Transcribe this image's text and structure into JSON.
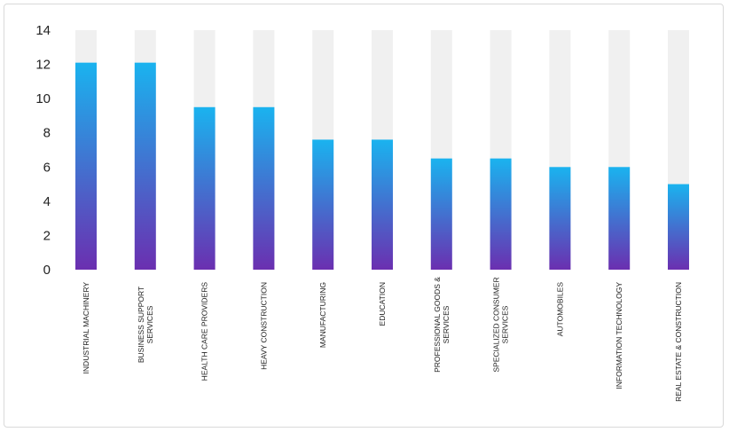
{
  "chart_data": {
    "type": "bar",
    "categories": [
      [
        "INDUSTRIAL MACHINERY"
      ],
      [
        "BUSINESS SUPPORT",
        "SERVICES"
      ],
      [
        "HEALTH CARE PROVIDERS"
      ],
      [
        "HEAVY CONSTRUCTION"
      ],
      [
        "MANUFACTURING"
      ],
      [
        "EDUCATION"
      ],
      [
        "PROFESSIONAL GOODS &",
        "SERVICES"
      ],
      [
        "SPECIALIZED CONSUMER",
        "SERVICES"
      ],
      [
        "AUTOMOBILES"
      ],
      [
        "INFORMATION TECHNOLOGY"
      ],
      [
        "REAL ESTATE & CONSTRUCTION"
      ]
    ],
    "values": [
      12.1,
      12.1,
      9.5,
      9.5,
      7.6,
      7.6,
      6.5,
      6.5,
      6.0,
      6.0,
      5.0
    ],
    "ylim": [
      0,
      14
    ],
    "yticks": [
      "0",
      "2",
      "4",
      "6",
      "8",
      "10",
      "12",
      "14"
    ],
    "colors": {
      "bar_top": "#1ab3ef",
      "bar_bottom": "#6b2fb0",
      "track": "#f0f0f0"
    }
  }
}
